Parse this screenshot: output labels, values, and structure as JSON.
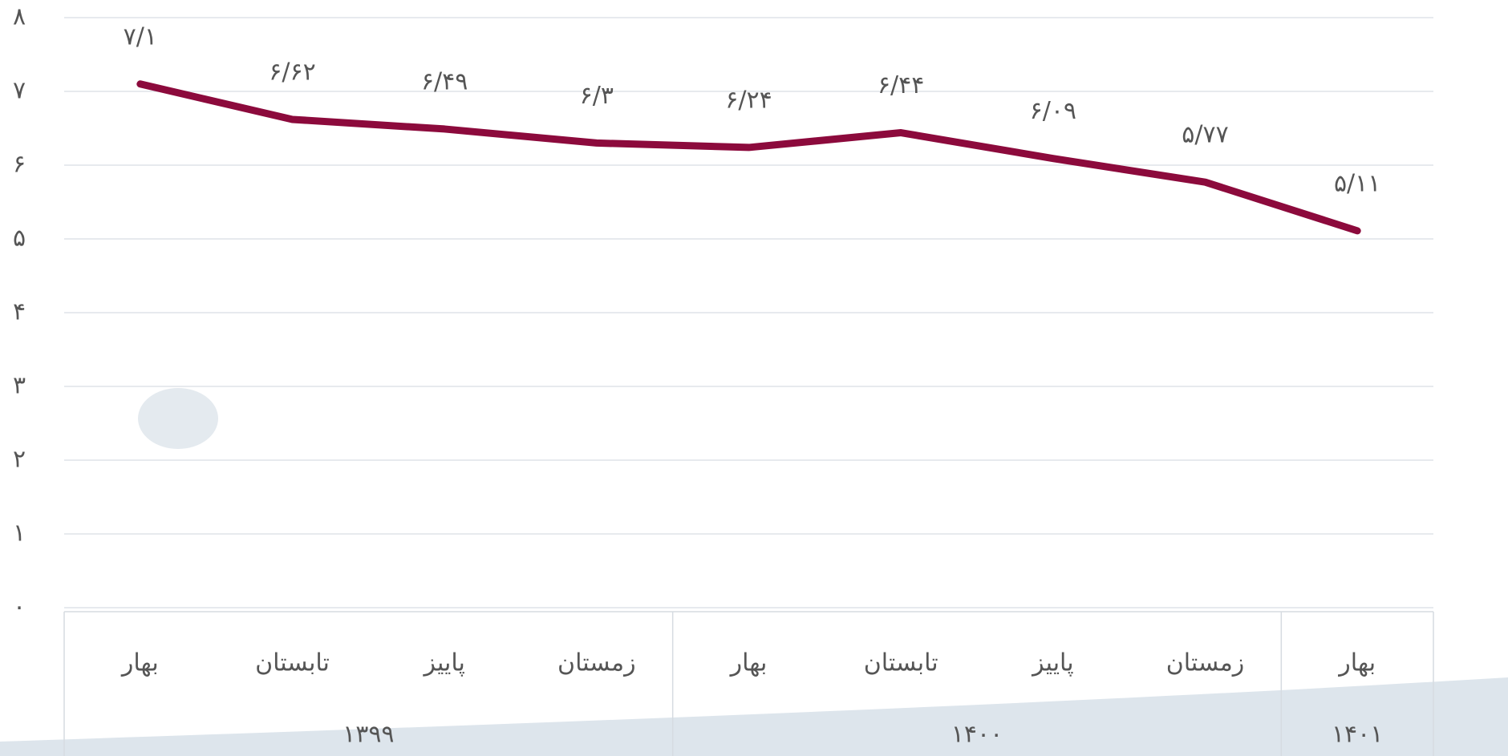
{
  "chart_data": {
    "type": "line",
    "groups": [
      {
        "label": "۱۳۹۹",
        "categories": [
          "بهار",
          "تابستان",
          "پاییز",
          "زمستان"
        ]
      },
      {
        "label": "۱۴۰۰",
        "categories": [
          "بهار",
          "تابستان",
          "پاییز",
          "زمستان"
        ]
      },
      {
        "label": "۱۴۰۱",
        "categories": [
          "بهار"
        ]
      }
    ],
    "series": [
      {
        "color": "#8c0a3c",
        "values": [
          7.1,
          6.62,
          6.49,
          6.3,
          6.24,
          6.44,
          6.09,
          5.77,
          5.11
        ],
        "value_labels": [
          "۷/۱",
          "۶/۶۲",
          "۶/۴۹",
          "۶/۳",
          "۶/۲۴",
          "۶/۴۴",
          "۶/۰۹",
          "۵/۷۷",
          "۵/۱۱"
        ]
      }
    ],
    "ylim": [
      0,
      8
    ],
    "yticks": [
      {
        "value": 0,
        "label": "۰"
      },
      {
        "value": 1,
        "label": "۱"
      },
      {
        "value": 2,
        "label": "۲"
      },
      {
        "value": 3,
        "label": "۳"
      },
      {
        "value": 4,
        "label": "۴"
      },
      {
        "value": 5,
        "label": "۵"
      },
      {
        "value": 6,
        "label": "۶"
      },
      {
        "value": 7,
        "label": "۷"
      },
      {
        "value": 8,
        "label": "۸"
      }
    ],
    "grid": true
  }
}
